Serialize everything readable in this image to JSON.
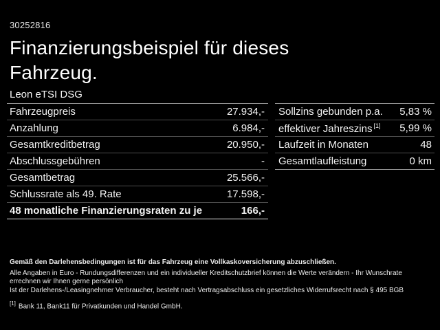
{
  "page": {
    "vehicle_id": "30252816",
    "title_line1": "Finanzierungsbeispiel für dieses",
    "title_line2": "Fahrzeug.",
    "model": "Leon eTSI DSG"
  },
  "finance_table": {
    "rows": [
      {
        "label": "Fahrzeugpreis",
        "value": "27.934,-"
      },
      {
        "label": "Anzahlung",
        "value": "6.984,-"
      },
      {
        "label": "Gesamtkreditbetrag",
        "value": "20.950,-"
      },
      {
        "label": "Abschlussgebühren",
        "value": "-"
      },
      {
        "label": "Gesamtbetrag",
        "value": "25.566,-"
      },
      {
        "label": "Schlussrate als 49. Rate",
        "value": "17.598,-"
      }
    ],
    "highlight_row": {
      "label": "48 monatliche Finanzierungsraten zu je",
      "value": "166,-"
    }
  },
  "conditions_table": {
    "rows": [
      {
        "label": "Sollzins gebunden p.a.",
        "value": "5,83 %"
      },
      {
        "label": "effektiver Jahreszins",
        "label_sup": "[1]",
        "value": "5,99 %"
      },
      {
        "label": "Laufzeit in Monaten",
        "value": "48"
      },
      {
        "label": "Gesamtlaufleistung",
        "value": "0 km"
      }
    ]
  },
  "footer": {
    "bold_note": "Gemäß den Darlehensbedingungen ist für das Fahrzeug eine Vollkaskoversicherung abzuschließen.",
    "note_line1": "Alle Angaben in Euro - Rundungsdifferenzen und ein individueller Kreditschutzbrief können die Werte verändern - Ihr Wunschrate errechnen wir Ihnen gerne persönlich",
    "note_line2": "Ist der Darlehens-/Leasingnehmer Verbraucher, besteht nach Vertragsabschluss ein gesetzliches Widerrufsrecht nach § 495 BGB",
    "footnote_marker": "[1]",
    "footnote_text": "Bank 11, Bank11 für Privatkunden und Handel GmbH."
  },
  "colors": {
    "background": "#000000",
    "text": "#f2f2f2",
    "title_text": "#ffffff",
    "divider": "#4e4e4e",
    "divider_strong": "#969696",
    "highlight_divider": "#ececec"
  }
}
